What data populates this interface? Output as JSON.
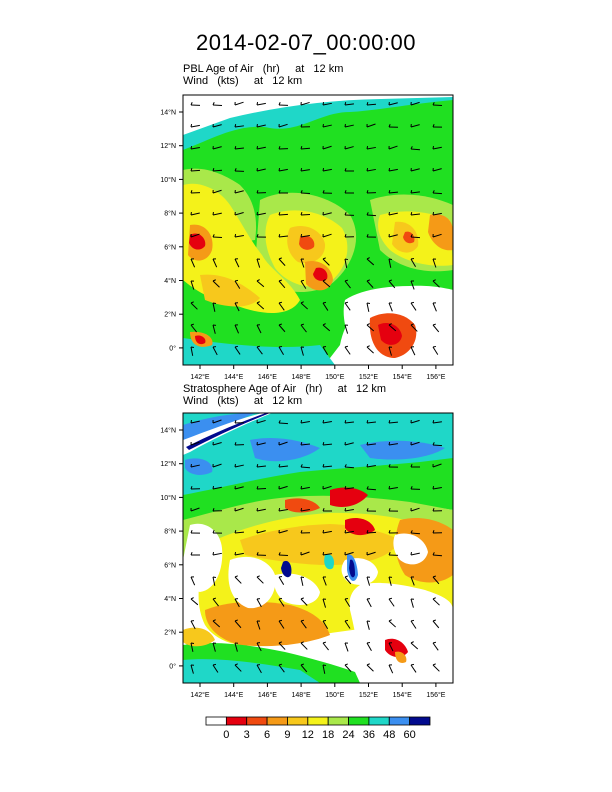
{
  "title": "2014-02-07_00:00:00",
  "panels": [
    {
      "id": "pbl",
      "line1": "PBL Age of Air   (hr)     at   12 km",
      "line2": "Wind   (kts)     at   12 km"
    },
    {
      "id": "strat",
      "line1": "Stratosphere Age of Air   (hr)     at   12 km",
      "line2": "Wind   (kts)     at   12 km"
    }
  ],
  "lat_ticks": [
    "14°N",
    "12°N",
    "10°N",
    "8°N",
    "6°N",
    "4°N",
    "2°N",
    "0°"
  ],
  "lon_ticks": [
    "142°E",
    "144°E",
    "146°E",
    "148°E",
    "150°E",
    "152°E",
    "154°E",
    "156°E"
  ],
  "colorbar": {
    "labels": [
      "0",
      "3",
      "6",
      "9",
      "12",
      "18",
      "24",
      "36",
      "48",
      "60"
    ],
    "colors": [
      "#ffffff",
      "#e5000f",
      "#f04a10",
      "#f59a17",
      "#f7c81c",
      "#f4f21a",
      "#a9e84a",
      "#20e021",
      "#1fd7c8",
      "#3b8ff0",
      "#020a8e"
    ]
  }
}
